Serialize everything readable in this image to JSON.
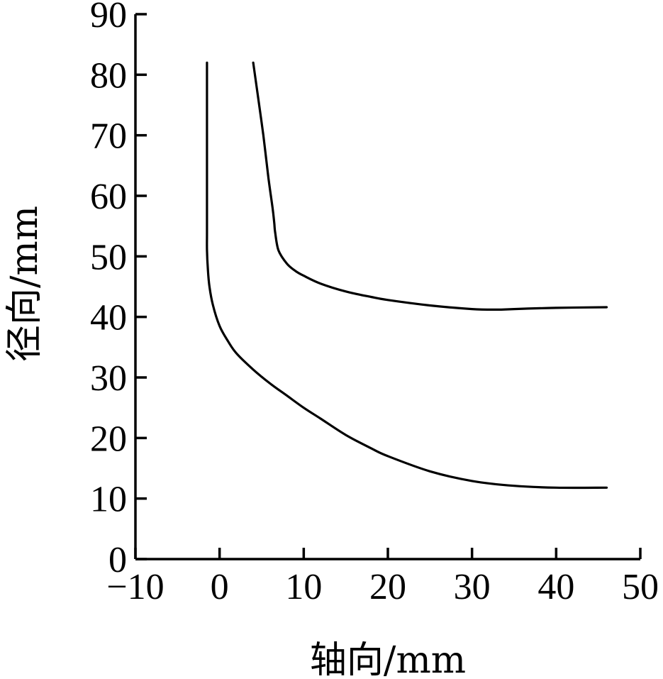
{
  "chart_data": {
    "type": "line",
    "title": "",
    "xlabel": "轴向/mm",
    "ylabel": "径向/mm",
    "xlim": [
      -10,
      50
    ],
    "ylim": [
      0,
      90
    ],
    "xticks": [
      -10,
      0,
      10,
      20,
      30,
      40,
      50
    ],
    "yticks": [
      0,
      10,
      20,
      30,
      40,
      50,
      60,
      70,
      80,
      90
    ],
    "xtick_labels": [
      "−10",
      "0",
      "10",
      "20",
      "30",
      "40",
      "50"
    ],
    "ytick_labels": [
      "0",
      "10",
      "20",
      "30",
      "40",
      "50",
      "60",
      "70",
      "80",
      "90"
    ],
    "grid": false,
    "legend": "none",
    "line_color": "#000000",
    "series": [
      {
        "x": [
          -1.5,
          -1.5,
          -1.5,
          -1.5,
          -1.5,
          -1.4,
          -1.2,
          -0.8,
          0,
          1,
          2,
          4,
          6,
          8,
          10,
          12,
          15,
          18,
          20,
          25,
          30,
          35,
          40,
          46
        ],
        "y": [
          82,
          70,
          60,
          54,
          51,
          48,
          45,
          42,
          38.5,
          36,
          34,
          31.3,
          29,
          27,
          25,
          23.2,
          20.5,
          18.3,
          17,
          14.5,
          12.9,
          12.1,
          11.8,
          11.8
        ]
      },
      {
        "x": [
          4,
          4.5,
          5.2,
          5.8,
          6.3,
          6.5,
          6.6,
          7,
          8,
          9,
          10,
          12,
          15,
          18,
          20,
          25,
          30,
          33,
          35,
          40,
          46
        ],
        "y": [
          82,
          77,
          70,
          63,
          58,
          55.5,
          54,
          51,
          48.8,
          47.6,
          46.8,
          45.5,
          44.2,
          43.3,
          42.8,
          41.9,
          41.3,
          41.2,
          41.3,
          41.5,
          41.6
        ]
      }
    ]
  }
}
